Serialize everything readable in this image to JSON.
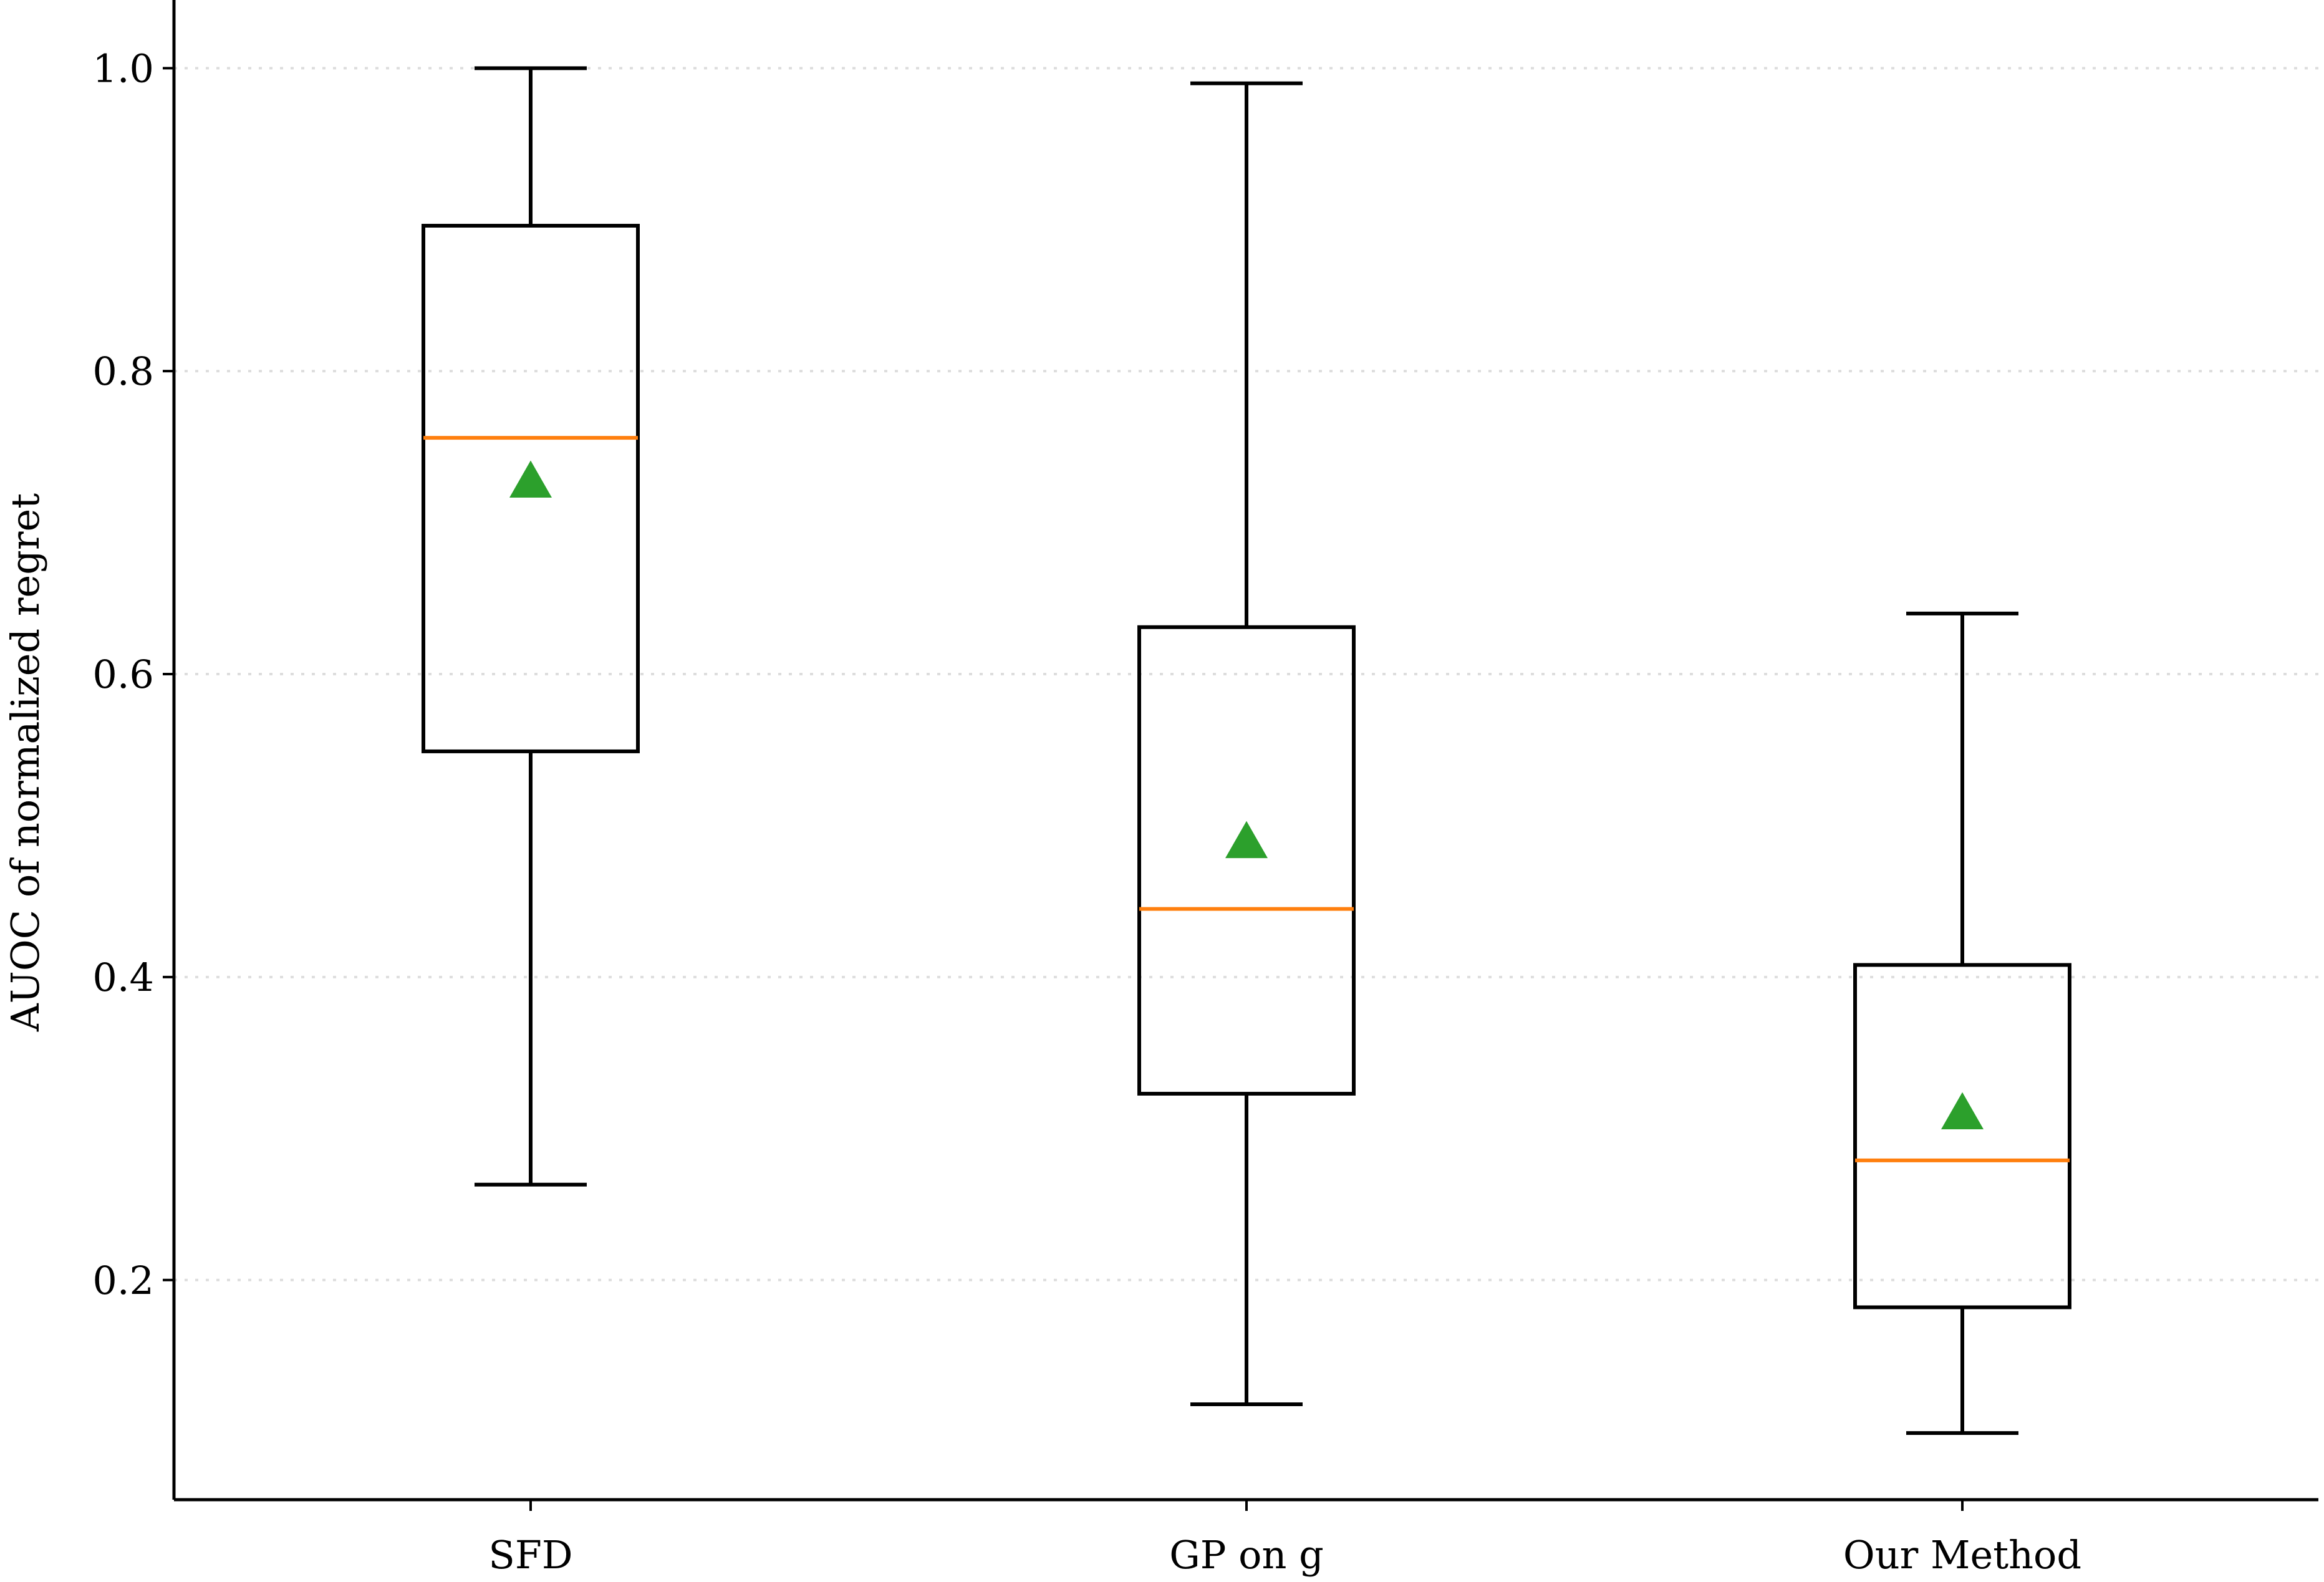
{
  "chart_data": {
    "type": "box",
    "title": "",
    "xlabel": "",
    "ylabel": "AUOC of normalized regret",
    "ylim": [
      0.055,
      1.045
    ],
    "yticks": [
      0.2,
      0.4,
      0.6,
      0.8,
      1.0
    ],
    "ytick_labels": [
      "0.2",
      "0.4",
      "0.6",
      "0.8",
      "1.0"
    ],
    "grid": "horizontal dotted",
    "categories": [
      "SFD",
      "GP on g",
      "Our Method"
    ],
    "boxes": [
      {
        "name": "SFD",
        "whisker_low": 0.263,
        "q1": 0.549,
        "median": 0.756,
        "q3": 0.896,
        "whisker_high": 1.0,
        "mean": 0.727
      },
      {
        "name": "GP on g",
        "whisker_low": 0.118,
        "q1": 0.323,
        "median": 0.445,
        "q3": 0.631,
        "whisker_high": 0.99,
        "mean": 0.489
      },
      {
        "name": "Our Method",
        "whisker_low": 0.099,
        "q1": 0.182,
        "median": 0.279,
        "q3": 0.408,
        "whisker_high": 0.64,
        "mean": 0.31
      }
    ],
    "colors": {
      "box": "#000000",
      "median": "#ff7f0e",
      "mean": "#2ca02c",
      "grid": "#dddddd"
    }
  }
}
